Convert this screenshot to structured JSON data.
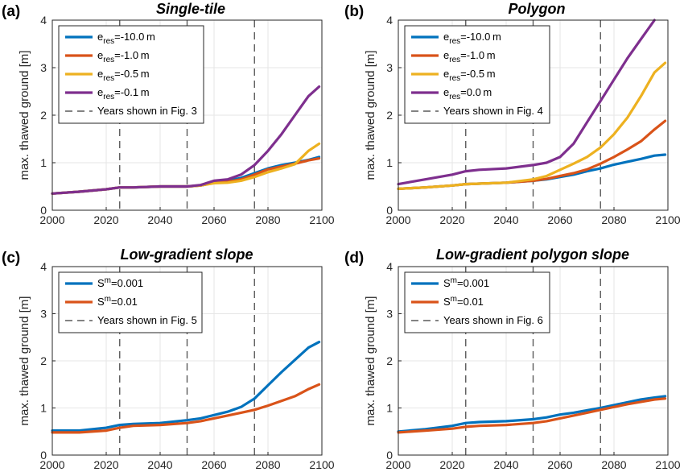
{
  "chart_data": [
    {
      "type": "line",
      "panel_label": "(a)",
      "title": "Single-tile",
      "ylabel": "max. thawed ground [m]",
      "xlabel": "",
      "xlim": [
        2000,
        2100
      ],
      "ylim": [
        0,
        4
      ],
      "xticks": [
        2000,
        2020,
        2040,
        2060,
        2080,
        2100
      ],
      "yticks": [
        0,
        1,
        2,
        3,
        4
      ],
      "grid": true,
      "legend_position": "top-left",
      "vlines": [
        2025,
        2050,
        2075
      ],
      "vline_label": "Years shown in Fig. 3",
      "series": [
        {
          "name": "e_res=-10.0m",
          "legend_main": "e",
          "legend_sub": "res",
          "legend_rest": "=-10.0 m",
          "color": "#0072BD",
          "x": [
            2000,
            2010,
            2020,
            2025,
            2030,
            2040,
            2050,
            2055,
            2060,
            2065,
            2070,
            2075,
            2080,
            2085,
            2090,
            2095,
            2099
          ],
          "y": [
            0.35,
            0.39,
            0.44,
            0.48,
            0.48,
            0.5,
            0.5,
            0.52,
            0.58,
            0.62,
            0.68,
            0.78,
            0.88,
            0.95,
            1.0,
            1.06,
            1.12
          ]
        },
        {
          "name": "e_res=-1.0m",
          "legend_main": "e",
          "legend_sub": "res",
          "legend_rest": "=-1.0 m",
          "color": "#D95319",
          "x": [
            2000,
            2010,
            2020,
            2025,
            2030,
            2040,
            2050,
            2055,
            2060,
            2065,
            2070,
            2075,
            2080,
            2085,
            2090,
            2095,
            2099
          ],
          "y": [
            0.35,
            0.39,
            0.44,
            0.48,
            0.48,
            0.5,
            0.5,
            0.52,
            0.58,
            0.6,
            0.65,
            0.75,
            0.86,
            0.92,
            0.98,
            1.05,
            1.09
          ]
        },
        {
          "name": "e_res=-0.5m",
          "legend_main": "e",
          "legend_sub": "res",
          "legend_rest": "=-0.5 m",
          "color": "#EDB120",
          "x": [
            2000,
            2010,
            2020,
            2025,
            2030,
            2040,
            2050,
            2055,
            2060,
            2065,
            2070,
            2075,
            2080,
            2085,
            2090,
            2095,
            2099
          ],
          "y": [
            0.35,
            0.39,
            0.44,
            0.48,
            0.48,
            0.5,
            0.5,
            0.52,
            0.57,
            0.58,
            0.62,
            0.7,
            0.8,
            0.88,
            0.97,
            1.25,
            1.4
          ]
        },
        {
          "name": "e_res=-0.1m",
          "legend_main": "e",
          "legend_sub": "res",
          "legend_rest": "=-0.1 m",
          "color": "#7E2F8E",
          "x": [
            2000,
            2010,
            2020,
            2025,
            2030,
            2040,
            2050,
            2055,
            2060,
            2065,
            2070,
            2075,
            2080,
            2085,
            2090,
            2095,
            2099
          ],
          "y": [
            0.35,
            0.39,
            0.44,
            0.48,
            0.48,
            0.5,
            0.5,
            0.53,
            0.62,
            0.65,
            0.75,
            0.95,
            1.25,
            1.6,
            2.0,
            2.4,
            2.6
          ]
        }
      ]
    },
    {
      "type": "line",
      "panel_label": "(b)",
      "title": "Polygon",
      "ylabel": "max. thawed ground [m]",
      "xlabel": "",
      "xlim": [
        2000,
        2100
      ],
      "ylim": [
        0,
        4
      ],
      "xticks": [
        2000,
        2020,
        2040,
        2060,
        2080,
        2100
      ],
      "yticks": [
        0,
        1,
        2,
        3,
        4
      ],
      "grid": true,
      "legend_position": "top-left",
      "vlines": [
        2025,
        2050,
        2075
      ],
      "vline_label": "Years shown in Fig. 4",
      "series": [
        {
          "name": "e_res=-10.0m",
          "legend_main": "e",
          "legend_sub": "res",
          "legend_rest": "=-10.0 m",
          "color": "#0072BD",
          "x": [
            2000,
            2010,
            2020,
            2025,
            2030,
            2040,
            2050,
            2055,
            2060,
            2065,
            2070,
            2075,
            2080,
            2085,
            2090,
            2095,
            2099
          ],
          "y": [
            0.45,
            0.48,
            0.52,
            0.55,
            0.56,
            0.58,
            0.62,
            0.65,
            0.7,
            0.75,
            0.82,
            0.88,
            0.96,
            1.02,
            1.08,
            1.15,
            1.17
          ]
        },
        {
          "name": "e_res=-1.0m",
          "legend_main": "e",
          "legend_sub": "res",
          "legend_rest": "=-1.0 m",
          "color": "#D95319",
          "x": [
            2000,
            2010,
            2020,
            2025,
            2030,
            2040,
            2050,
            2055,
            2060,
            2065,
            2070,
            2075,
            2080,
            2085,
            2090,
            2095,
            2099
          ],
          "y": [
            0.45,
            0.48,
            0.52,
            0.55,
            0.56,
            0.58,
            0.62,
            0.66,
            0.72,
            0.78,
            0.86,
            0.98,
            1.12,
            1.28,
            1.45,
            1.7,
            1.88
          ]
        },
        {
          "name": "e_res=-0.5m",
          "legend_main": "e",
          "legend_sub": "res",
          "legend_rest": "=-0.5 m",
          "color": "#EDB120",
          "x": [
            2000,
            2010,
            2020,
            2025,
            2030,
            2040,
            2050,
            2055,
            2060,
            2065,
            2070,
            2075,
            2080,
            2085,
            2090,
            2095,
            2099
          ],
          "y": [
            0.45,
            0.48,
            0.52,
            0.55,
            0.56,
            0.58,
            0.65,
            0.72,
            0.85,
            0.98,
            1.12,
            1.32,
            1.6,
            1.95,
            2.4,
            2.9,
            3.1
          ]
        },
        {
          "name": "e_res=0.0m",
          "legend_main": "e",
          "legend_sub": "res",
          "legend_rest": "=0.0 m",
          "color": "#7E2F8E",
          "x": [
            2000,
            2010,
            2020,
            2025,
            2030,
            2040,
            2050,
            2055,
            2060,
            2065,
            2070,
            2075,
            2080,
            2085,
            2090,
            2095
          ],
          "y": [
            0.55,
            0.65,
            0.75,
            0.82,
            0.85,
            0.88,
            0.95,
            1.0,
            1.12,
            1.4,
            1.85,
            2.3,
            2.75,
            3.2,
            3.6,
            4.0
          ]
        }
      ]
    },
    {
      "type": "line",
      "panel_label": "(c)",
      "title": "Low-gradient slope",
      "ylabel": "max. thawed ground [m]",
      "xlabel": "",
      "xlim": [
        2000,
        2100
      ],
      "ylim": [
        0,
        4
      ],
      "xticks": [
        2000,
        2020,
        2040,
        2060,
        2080,
        2100
      ],
      "yticks": [
        0,
        1,
        2,
        3,
        4
      ],
      "grid": true,
      "legend_position": "top-left",
      "vlines": [
        2025,
        2050,
        2075
      ],
      "vline_label": "Years shown in Fig. 5",
      "series": [
        {
          "name": "S^m=0.001",
          "legend_main": "S",
          "legend_sup": "m",
          "legend_rest": "=0.001",
          "color": "#0072BD",
          "x": [
            2000,
            2010,
            2020,
            2025,
            2030,
            2040,
            2050,
            2055,
            2060,
            2065,
            2070,
            2075,
            2080,
            2085,
            2090,
            2095,
            2099
          ],
          "y": [
            0.52,
            0.52,
            0.58,
            0.64,
            0.66,
            0.68,
            0.74,
            0.78,
            0.85,
            0.92,
            1.02,
            1.2,
            1.48,
            1.76,
            2.02,
            2.28,
            2.4
          ]
        },
        {
          "name": "S^m=0.01",
          "legend_main": "S",
          "legend_sup": "m",
          "legend_rest": "=0.01",
          "color": "#D95319",
          "x": [
            2000,
            2010,
            2020,
            2025,
            2030,
            2040,
            2050,
            2055,
            2060,
            2065,
            2070,
            2075,
            2080,
            2085,
            2090,
            2095,
            2099
          ],
          "y": [
            0.48,
            0.48,
            0.52,
            0.58,
            0.62,
            0.64,
            0.68,
            0.72,
            0.78,
            0.84,
            0.9,
            0.96,
            1.05,
            1.15,
            1.25,
            1.4,
            1.5
          ]
        }
      ]
    },
    {
      "type": "line",
      "panel_label": "(d)",
      "title": "Low-gradient polygon slope",
      "ylabel": "max. thawed ground [m]",
      "xlabel": "",
      "xlim": [
        2000,
        2100
      ],
      "ylim": [
        0,
        4
      ],
      "xticks": [
        2000,
        2020,
        2040,
        2060,
        2080,
        2100
      ],
      "yticks": [
        0,
        1,
        2,
        3,
        4
      ],
      "grid": true,
      "legend_position": "top-left",
      "vlines": [
        2025,
        2050,
        2075
      ],
      "vline_label": "Years shown in Fig. 6",
      "series": [
        {
          "name": "S^m=0.001",
          "legend_main": "S",
          "legend_sup": "m",
          "legend_rest": "=0.001",
          "color": "#0072BD",
          "x": [
            2000,
            2010,
            2020,
            2025,
            2030,
            2040,
            2050,
            2055,
            2060,
            2065,
            2070,
            2075,
            2080,
            2085,
            2090,
            2095,
            2099
          ],
          "y": [
            0.5,
            0.55,
            0.62,
            0.68,
            0.7,
            0.72,
            0.76,
            0.8,
            0.86,
            0.9,
            0.95,
            1.0,
            1.06,
            1.12,
            1.18,
            1.22,
            1.25
          ]
        },
        {
          "name": "S^m=0.01",
          "legend_main": "S",
          "legend_sup": "m",
          "legend_rest": "=0.01",
          "color": "#D95319",
          "x": [
            2000,
            2010,
            2020,
            2025,
            2030,
            2040,
            2050,
            2055,
            2060,
            2065,
            2070,
            2075,
            2080,
            2085,
            2090,
            2095,
            2099
          ],
          "y": [
            0.48,
            0.52,
            0.56,
            0.6,
            0.62,
            0.64,
            0.68,
            0.72,
            0.78,
            0.84,
            0.9,
            0.96,
            1.02,
            1.08,
            1.13,
            1.18,
            1.2
          ]
        }
      ]
    }
  ]
}
